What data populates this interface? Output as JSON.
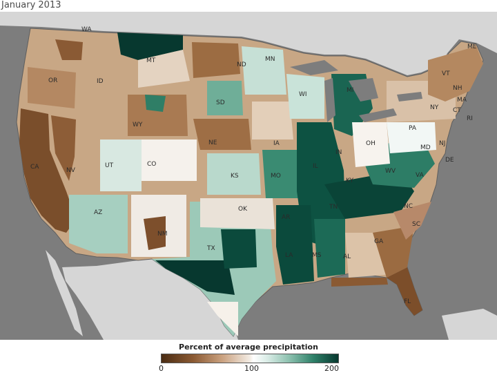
{
  "title": "January 2013",
  "legend": {
    "title": "Percent of average precipitation",
    "ticks": [
      "0",
      "100",
      "200"
    ],
    "colors": {
      "low": "#4a2c13",
      "mid": "#ffffff",
      "high": "#07382f"
    }
  },
  "colors": {
    "ocean": "#7a7a7a",
    "land_outside": "#d4d4d4",
    "lakes": "#7a7a7a",
    "state_border": "#5e5e5e"
  },
  "states": [
    {
      "abbr": "WA",
      "level": "dry"
    },
    {
      "abbr": "OR",
      "level": "dry"
    },
    {
      "abbr": "CA",
      "level": "very-dry"
    },
    {
      "abbr": "ID",
      "level": "dry"
    },
    {
      "abbr": "NV",
      "level": "dry"
    },
    {
      "abbr": "MT",
      "level": "mixed"
    },
    {
      "abbr": "WY",
      "level": "dry"
    },
    {
      "abbr": "UT",
      "level": "near-normal"
    },
    {
      "abbr": "CO",
      "level": "near-normal"
    },
    {
      "abbr": "AZ",
      "level": "wet"
    },
    {
      "abbr": "NM",
      "level": "dry"
    },
    {
      "abbr": "ND",
      "level": "near-normal"
    },
    {
      "abbr": "SD",
      "level": "wet"
    },
    {
      "abbr": "NE",
      "level": "dry"
    },
    {
      "abbr": "KS",
      "level": "wet"
    },
    {
      "abbr": "OK",
      "level": "near-normal"
    },
    {
      "abbr": "TX",
      "level": "very-wet"
    },
    {
      "abbr": "MN",
      "level": "wet"
    },
    {
      "abbr": "IA",
      "level": "near-normal"
    },
    {
      "abbr": "MO",
      "level": "wet"
    },
    {
      "abbr": "AR",
      "level": "very-wet"
    },
    {
      "abbr": "LA",
      "level": "very-wet"
    },
    {
      "abbr": "WI",
      "level": "wet"
    },
    {
      "abbr": "IL",
      "level": "very-wet"
    },
    {
      "abbr": "MS",
      "level": "very-wet"
    },
    {
      "abbr": "MI",
      "level": "very-wet"
    },
    {
      "abbr": "IN",
      "level": "very-wet"
    },
    {
      "abbr": "KY",
      "level": "wet"
    },
    {
      "abbr": "TN",
      "level": "very-wet"
    },
    {
      "abbr": "AL",
      "level": "dry"
    },
    {
      "abbr": "OH",
      "level": "near-normal"
    },
    {
      "abbr": "WV",
      "level": "near-normal"
    },
    {
      "abbr": "VA",
      "level": "very-wet"
    },
    {
      "abbr": "NC",
      "level": "wet"
    },
    {
      "abbr": "SC",
      "level": "dry"
    },
    {
      "abbr": "GA",
      "level": "dry"
    },
    {
      "abbr": "FL",
      "level": "very-dry"
    },
    {
      "abbr": "PA",
      "level": "near-normal"
    },
    {
      "abbr": "NY",
      "level": "dry"
    },
    {
      "abbr": "VT",
      "level": "dry"
    },
    {
      "abbr": "NH",
      "level": "dry"
    },
    {
      "abbr": "ME",
      "level": "dry"
    },
    {
      "abbr": "MA",
      "level": "dry"
    },
    {
      "abbr": "CT",
      "level": "very-dry"
    },
    {
      "abbr": "RI",
      "level": "dry"
    },
    {
      "abbr": "NJ",
      "level": "near-normal"
    },
    {
      "abbr": "DE",
      "level": "near-normal"
    },
    {
      "abbr": "MD",
      "level": "near-normal"
    }
  ]
}
